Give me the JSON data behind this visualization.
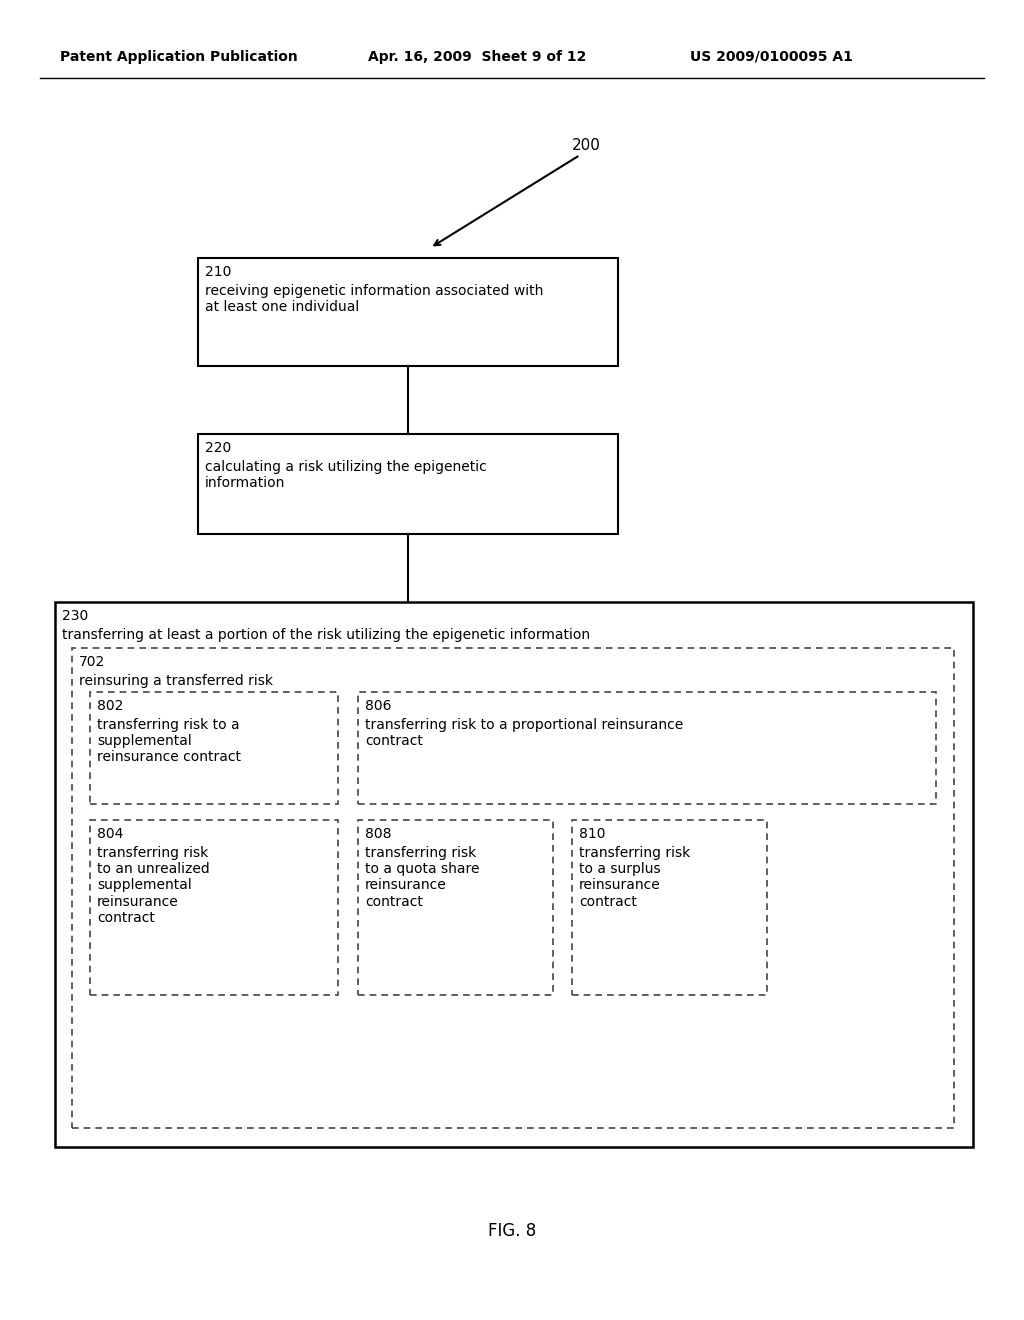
{
  "header_left": "Patent Application Publication",
  "header_mid": "Apr. 16, 2009  Sheet 9 of 12",
  "header_right": "US 2009/0100095 A1",
  "label_200": "200",
  "label_210": "210",
  "text_210": "receiving epigenetic information associated with\nat least one individual",
  "label_220": "220",
  "text_220": "calculating a risk utilizing the epigenetic\ninformation",
  "label_230": "230",
  "text_230": "transferring at least a portion of the risk utilizing the epigenetic information",
  "label_702": "702",
  "text_702": "reinsuring a transferred risk",
  "label_802": "802",
  "text_802": "transferring risk to a\nsupplemental\nreinsurance contract",
  "label_804": "804",
  "text_804": "transferring risk\nto an unrealized\nsupplemental\nreinsurance\ncontract",
  "label_806": "806",
  "text_806": "transferring risk to a proportional reinsurance\ncontract",
  "label_808": "808",
  "text_808": "transferring risk\nto a quota share\nreinsurance\ncontract",
  "label_810": "810",
  "text_810": "transferring risk\nto a surplus\nreinsurance\ncontract",
  "fig_label": "FIG. 8",
  "bg_color": "#ffffff",
  "text_color": "#000000"
}
